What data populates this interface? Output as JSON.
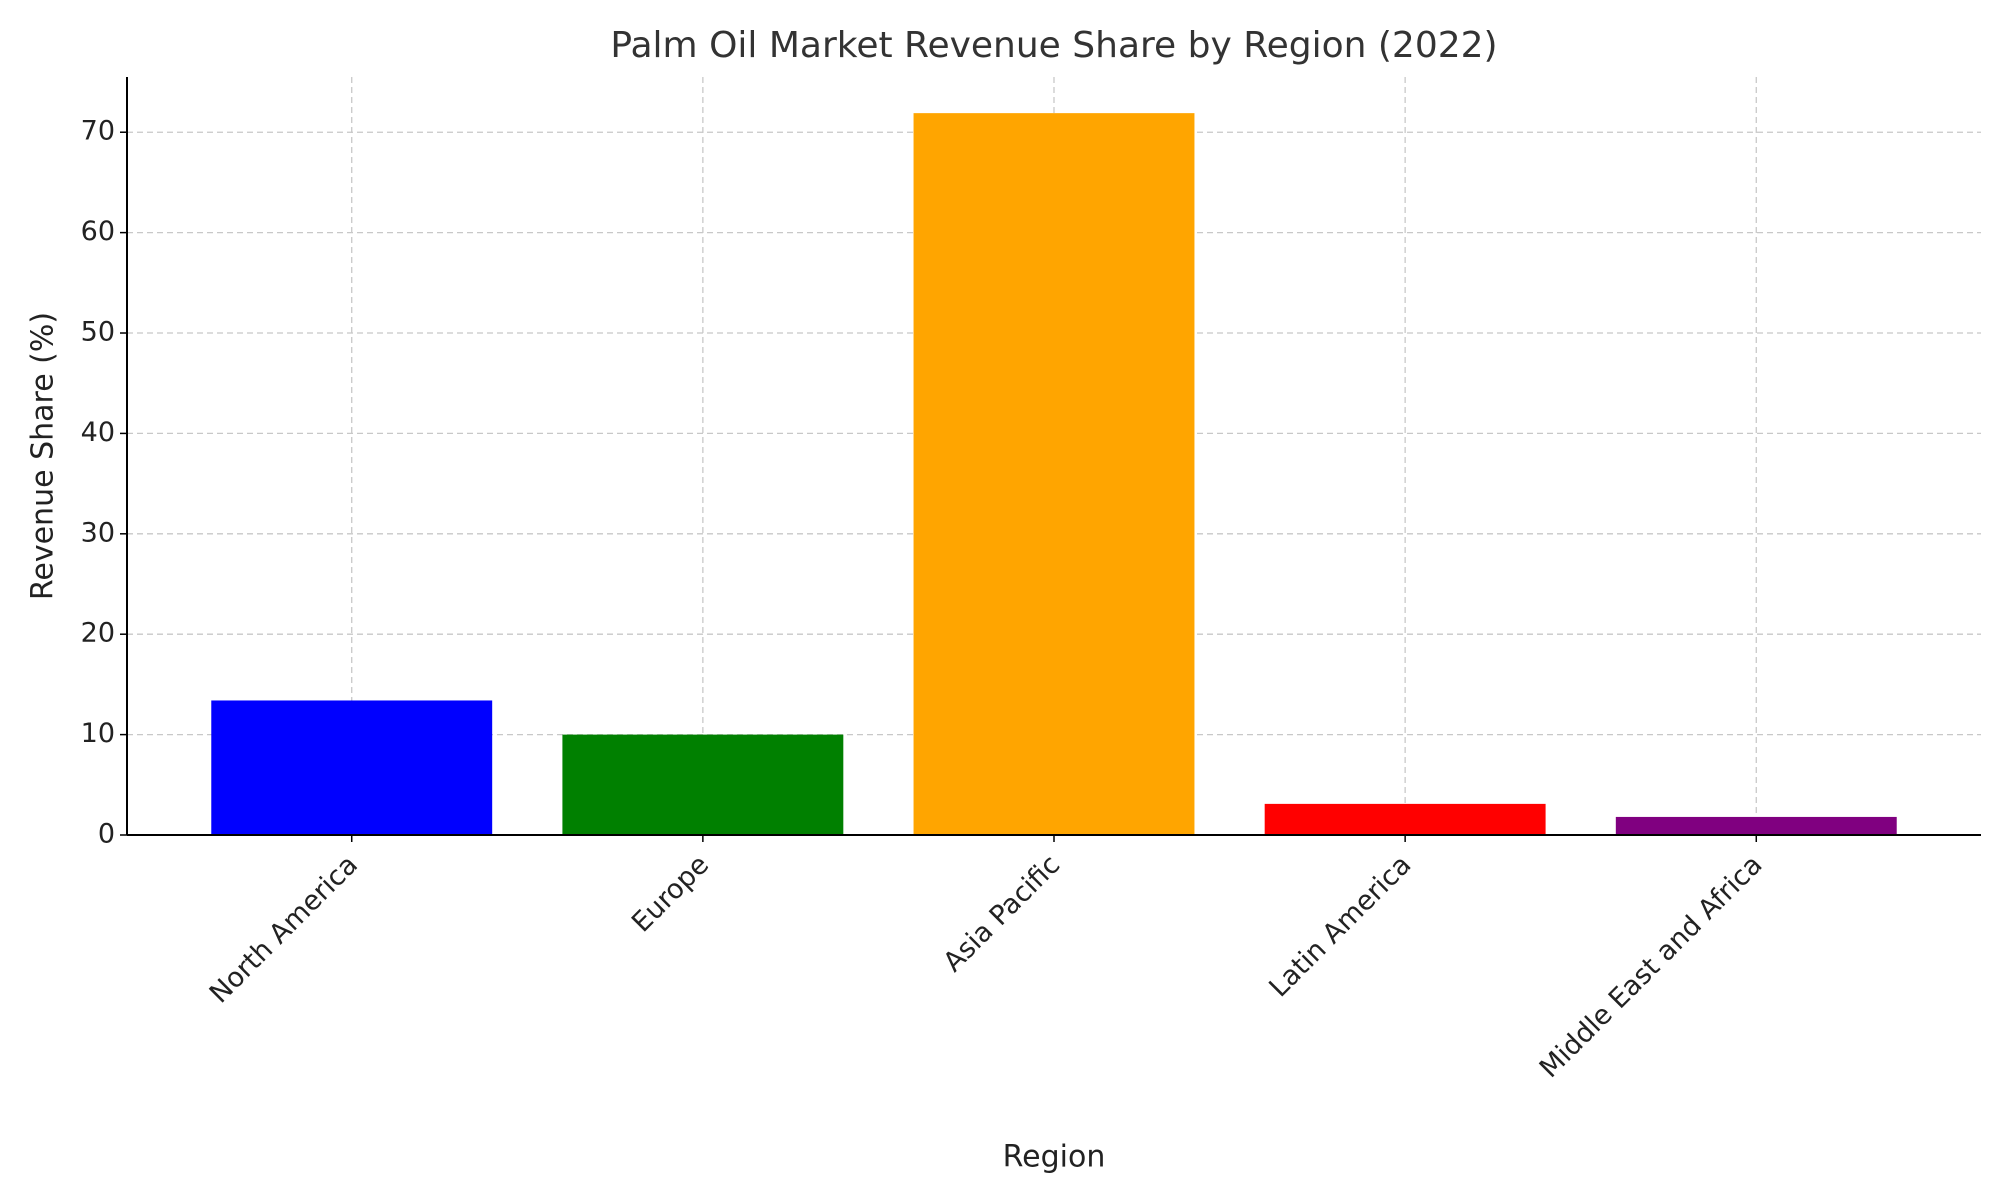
{
  "chart_data": {
    "type": "bar",
    "title": "Palm Oil Market Revenue Share by Region (2022)",
    "x_label": "Region",
    "y_label": "Revenue Share (%)",
    "categories": [
      "North America",
      "Europe",
      "Asia Pacific",
      "Latin America",
      "Middle East and Africa"
    ],
    "values": [
      13.4,
      10.0,
      71.9,
      3.1,
      1.8
    ],
    "colors": [
      "#0000ff",
      "#008000",
      "#ffa500",
      "#ff0000",
      "#800080"
    ],
    "ylim": [
      0,
      75.5
    ],
    "yticks": [
      0,
      10,
      20,
      30,
      40,
      50,
      60,
      70
    ],
    "grid": true
  }
}
